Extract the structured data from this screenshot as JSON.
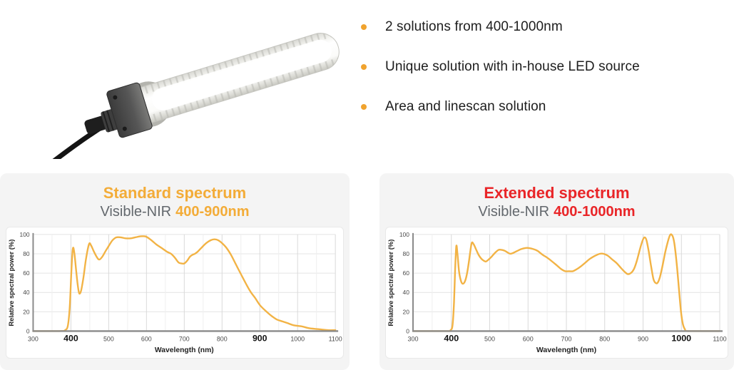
{
  "product": {
    "label": "LED line light bar photo"
  },
  "bullets": {
    "dot_color": "#F0A32E",
    "items": [
      "2 solutions from 400-1000nm",
      "Unique solution with in-house LED source",
      "Area and linescan solution"
    ]
  },
  "chart_data": [
    {
      "type": "line",
      "title": "Standard spectrum",
      "subtitle_prefix": "Visible-NIR",
      "subtitle_range": "400-900nm",
      "accent_color": "#F3AC38",
      "line_color": "#F2B345",
      "xlabel": "Wavelength (nm)",
      "ylabel": "Relative spectral power (%)",
      "xlim": [
        300,
        1100
      ],
      "ylim": [
        0,
        100
      ],
      "x_ticks": [
        300,
        400,
        500,
        600,
        700,
        800,
        900,
        1000,
        1100
      ],
      "bold_x_ticks": [
        400,
        900
      ],
      "y_ticks": [
        0,
        20,
        40,
        60,
        80,
        100
      ],
      "grid": {
        "x_minor_step": 50,
        "x_major_step": 100,
        "y_step": 20,
        "grid_on": true
      },
      "legend": "none",
      "series": [
        {
          "name": "Relative spectral power",
          "points": [
            [
              300,
              0
            ],
            [
              370,
              0
            ],
            [
              385,
              1
            ],
            [
              392,
              6
            ],
            [
              397,
              25
            ],
            [
              401,
              60
            ],
            [
              405,
              85
            ],
            [
              409,
              81
            ],
            [
              414,
              62
            ],
            [
              418,
              48
            ],
            [
              422,
              39
            ],
            [
              427,
              42
            ],
            [
              433,
              55
            ],
            [
              440,
              75
            ],
            [
              448,
              90
            ],
            [
              453,
              89
            ],
            [
              460,
              83
            ],
            [
              468,
              77
            ],
            [
              475,
              74
            ],
            [
              483,
              77
            ],
            [
              492,
              83
            ],
            [
              500,
              88
            ],
            [
              510,
              94
            ],
            [
              520,
              97
            ],
            [
              532,
              97
            ],
            [
              545,
              96
            ],
            [
              558,
              96
            ],
            [
              570,
              97
            ],
            [
              583,
              98
            ],
            [
              597,
              98
            ],
            [
              610,
              95
            ],
            [
              625,
              90
            ],
            [
              640,
              86
            ],
            [
              655,
              82
            ],
            [
              665,
              80
            ],
            [
              675,
              76
            ],
            [
              685,
              71
            ],
            [
              693,
              70
            ],
            [
              700,
              70
            ],
            [
              708,
              73
            ],
            [
              715,
              77
            ],
            [
              722,
              79
            ],
            [
              728,
              80
            ],
            [
              735,
              82
            ],
            [
              745,
              86
            ],
            [
              758,
              91
            ],
            [
              770,
              94
            ],
            [
              780,
              95
            ],
            [
              790,
              94
            ],
            [
              800,
              91
            ],
            [
              812,
              86
            ],
            [
              825,
              78
            ],
            [
              838,
              68
            ],
            [
              850,
              59
            ],
            [
              862,
              50
            ],
            [
              875,
              41
            ],
            [
              888,
              34
            ],
            [
              900,
              27
            ],
            [
              915,
              21
            ],
            [
              930,
              16
            ],
            [
              945,
              12
            ],
            [
              960,
              10
            ],
            [
              975,
              8
            ],
            [
              990,
              6
            ],
            [
              1010,
              5
            ],
            [
              1030,
              3
            ],
            [
              1055,
              2
            ],
            [
              1080,
              1
            ],
            [
              1100,
              1
            ]
          ]
        }
      ]
    },
    {
      "type": "line",
      "title": "Extended spectrum",
      "subtitle_prefix": "Visible-NIR",
      "subtitle_range": "400-1000nm",
      "accent_color": "#E92528",
      "line_color": "#F2B345",
      "xlabel": "Wavelength (nm)",
      "ylabel": "Relative spectral power (%)",
      "xlim": [
        300,
        1100
      ],
      "ylim": [
        0,
        100
      ],
      "x_ticks": [
        300,
        400,
        500,
        600,
        700,
        800,
        900,
        1000,
        1100
      ],
      "bold_x_ticks": [
        400,
        1000
      ],
      "y_ticks": [
        0,
        20,
        40,
        60,
        80,
        100
      ],
      "grid": {
        "x_minor_step": 50,
        "x_major_step": 100,
        "y_step": 20,
        "grid_on": true
      },
      "legend": "none",
      "series": [
        {
          "name": "Relative spectral power",
          "points": [
            [
              300,
              0
            ],
            [
              390,
              0
            ],
            [
              398,
              1
            ],
            [
              403,
              6
            ],
            [
              407,
              30
            ],
            [
              410,
              65
            ],
            [
              413,
              88
            ],
            [
              416,
              80
            ],
            [
              420,
              62
            ],
            [
              425,
              52
            ],
            [
              430,
              49
            ],
            [
              436,
              52
            ],
            [
              442,
              62
            ],
            [
              448,
              78
            ],
            [
              453,
              91
            ],
            [
              458,
              90
            ],
            [
              464,
              85
            ],
            [
              471,
              79
            ],
            [
              478,
              75
            ],
            [
              484,
              73
            ],
            [
              490,
              72
            ],
            [
              497,
              74
            ],
            [
              505,
              77
            ],
            [
              514,
              81
            ],
            [
              523,
              84
            ],
            [
              532,
              84
            ],
            [
              540,
              83
            ],
            [
              548,
              81
            ],
            [
              554,
              80
            ],
            [
              562,
              81
            ],
            [
              572,
              83
            ],
            [
              583,
              85
            ],
            [
              593,
              86
            ],
            [
              602,
              86
            ],
            [
              613,
              85
            ],
            [
              625,
              83
            ],
            [
              638,
              79
            ],
            [
              650,
              76
            ],
            [
              663,
              72
            ],
            [
              675,
              68
            ],
            [
              687,
              64
            ],
            [
              697,
              62
            ],
            [
              707,
              62
            ],
            [
              717,
              62
            ],
            [
              727,
              64
            ],
            [
              738,
              67
            ],
            [
              750,
              71
            ],
            [
              762,
              75
            ],
            [
              775,
              78
            ],
            [
              787,
              80
            ],
            [
              797,
              80
            ],
            [
              808,
              78
            ],
            [
              820,
              74
            ],
            [
              832,
              70
            ],
            [
              843,
              65
            ],
            [
              853,
              61
            ],
            [
              860,
              59
            ],
            [
              868,
              60
            ],
            [
              876,
              64
            ],
            [
              884,
              73
            ],
            [
              892,
              85
            ],
            [
              899,
              94
            ],
            [
              904,
              97
            ],
            [
              909,
              94
            ],
            [
              915,
              82
            ],
            [
              921,
              67
            ],
            [
              927,
              54
            ],
            [
              932,
              50
            ],
            [
              938,
              50
            ],
            [
              944,
              56
            ],
            [
              951,
              68
            ],
            [
              958,
              82
            ],
            [
              965,
              93
            ],
            [
              970,
              99
            ],
            [
              974,
              100
            ],
            [
              979,
              96
            ],
            [
              984,
              84
            ],
            [
              989,
              65
            ],
            [
              994,
              42
            ],
            [
              999,
              20
            ],
            [
              1004,
              7
            ],
            [
              1009,
              2
            ],
            [
              1015,
              0
            ],
            [
              1050,
              0
            ],
            [
              1100,
              0
            ]
          ]
        }
      ]
    }
  ],
  "chart_style": {
    "panel_bg": "#f4f4f4",
    "plot_bg": "#ffffff",
    "axis_color": "#8a8a8a",
    "grid_minor": "#efefef",
    "grid_major": "#d9d9d9",
    "grid_horizontal": "#e4e4e4",
    "tick_color": "#4a4a4a",
    "bold_tick_color": "#111111"
  }
}
